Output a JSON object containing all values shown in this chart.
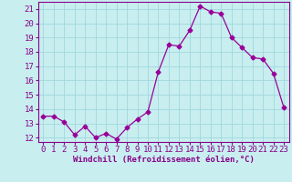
{
  "x": [
    0,
    1,
    2,
    3,
    4,
    5,
    6,
    7,
    8,
    9,
    10,
    11,
    12,
    13,
    14,
    15,
    16,
    17,
    18,
    19,
    20,
    21,
    22,
    23
  ],
  "y": [
    13.5,
    13.5,
    13.1,
    12.2,
    12.8,
    12.0,
    12.3,
    11.9,
    12.7,
    13.3,
    13.8,
    16.6,
    18.5,
    18.4,
    19.5,
    21.2,
    20.8,
    20.7,
    19.0,
    18.3,
    17.6,
    17.5,
    16.5,
    14.1
  ],
  "line_color": "#990099",
  "marker": "D",
  "marker_size": 2.5,
  "bg_color": "#c8eef0",
  "grid_color": "#a0d8dc",
  "xlabel": "Windchill (Refroidissement éolien,°C)",
  "xlabel_color": "#880088",
  "tick_color": "#880088",
  "ylim": [
    11.7,
    21.5
  ],
  "xlim": [
    -0.5,
    23.5
  ],
  "yticks": [
    12,
    13,
    14,
    15,
    16,
    17,
    18,
    19,
    20,
    21
  ],
  "xticks": [
    0,
    1,
    2,
    3,
    4,
    5,
    6,
    7,
    8,
    9,
    10,
    11,
    12,
    13,
    14,
    15,
    16,
    17,
    18,
    19,
    20,
    21,
    22,
    23
  ],
  "tick_fontsize": 6.5,
  "xlabel_fontsize": 6.5
}
